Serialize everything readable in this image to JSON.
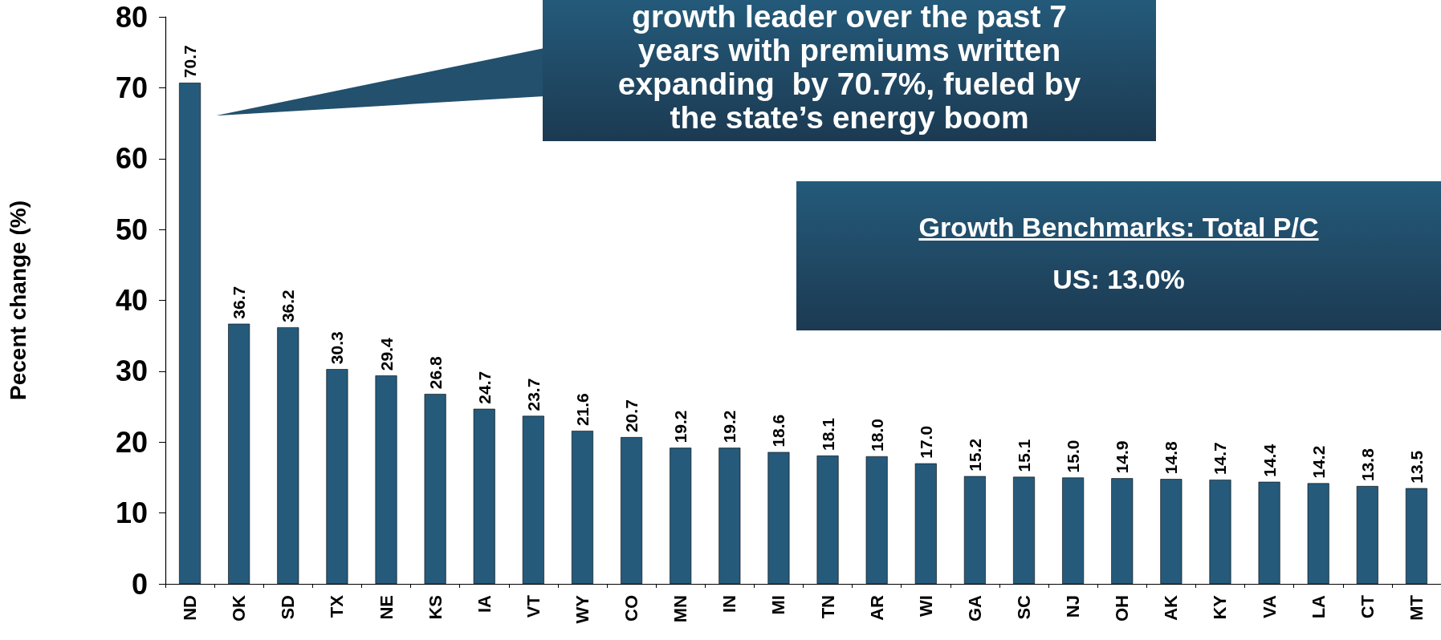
{
  "chart_data": {
    "type": "bar",
    "ylabel": "Pecent change (%)",
    "categories": [
      "ND",
      "OK",
      "SD",
      "TX",
      "NE",
      "KS",
      "IA",
      "VT",
      "WY",
      "CO",
      "MN",
      "IN",
      "MI",
      "TN",
      "AR",
      "WI",
      "GA",
      "SC",
      "NJ",
      "OH",
      "AK",
      "KY",
      "VA",
      "LA",
      "CT",
      "MT"
    ],
    "values": [
      70.7,
      36.7,
      36.2,
      30.3,
      29.4,
      26.8,
      24.7,
      23.7,
      21.6,
      20.7,
      19.2,
      19.2,
      18.6,
      18.1,
      18.0,
      17.0,
      15.2,
      15.1,
      15.0,
      14.9,
      14.8,
      14.7,
      14.4,
      14.2,
      13.8,
      13.5
    ],
    "value_labels": [
      "70.7",
      "36.7",
      "36.2",
      "30.3",
      "29.4",
      "26.8",
      "24.7",
      "23.7",
      "21.6",
      "20.7",
      "19.2",
      "19.2",
      "18.6",
      "18.1",
      "18.0",
      "17.0",
      "15.2",
      "15.1",
      "15.0",
      "14.9",
      "14.8",
      "14.7",
      "14.4",
      "14.2",
      "13.8",
      "13.5"
    ],
    "color": "#255a7b",
    "ylim": [
      0,
      80
    ],
    "yticks": [
      0,
      10,
      20,
      30,
      40,
      50,
      60,
      70,
      80
    ],
    "annotations": [
      "growth leader over the past 7 years with premiums written expanding  by 70.7%, fueled by the state’s energy boom",
      "Growth Benchmarks: Total P/C",
      "US: 13.0%"
    ]
  }
}
